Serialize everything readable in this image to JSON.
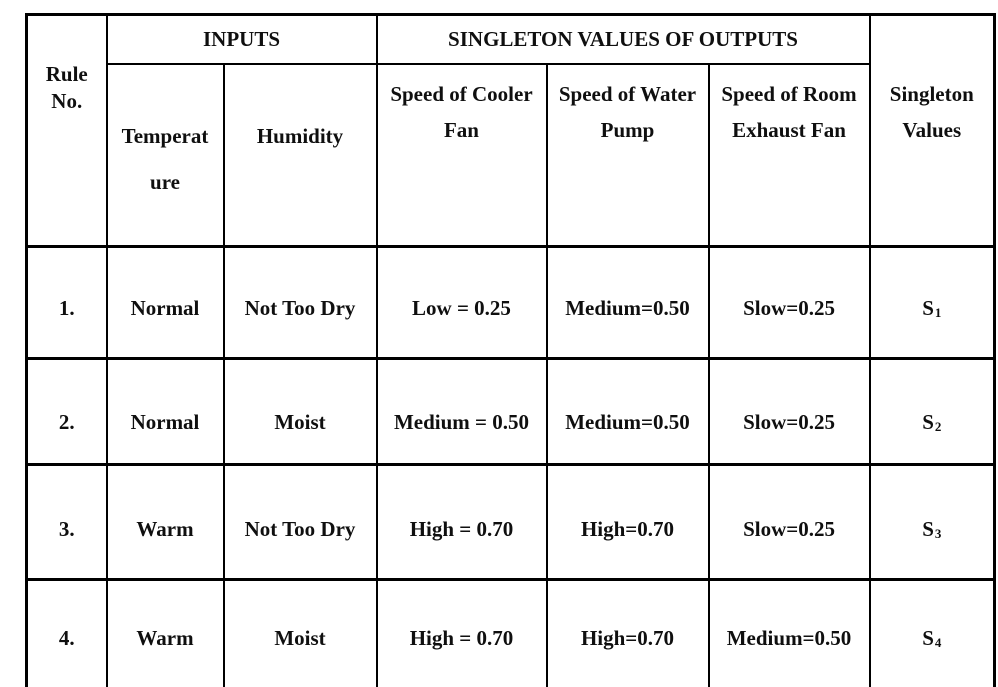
{
  "colors": {
    "background": "#ffffff",
    "border": "#000000",
    "text": "#0f0f0f"
  },
  "table": {
    "header": {
      "rule_no": "Rule No.",
      "inputs_group": "INPUTS",
      "outputs_group": "SINGLETON VALUES OF OUTPUTS",
      "singleton_values": "Singleton Values",
      "temperature": {
        "line1": "Temperat",
        "line2": "ure"
      },
      "humidity": "Humidity",
      "cooler_fan": "Speed of Cooler Fan",
      "water_pump": "Speed of Water Pump",
      "exhaust_fan": "Speed of Room Exhaust Fan"
    },
    "rows": [
      {
        "no": "1.",
        "temperature": "Normal",
        "humidity": "Not Too Dry",
        "cooler_fan": "Low = 0.25",
        "water_pump": "Medium=0.50",
        "exhaust_fan": "Slow=0.25",
        "singleton": {
          "base": "S",
          "sub": "1"
        }
      },
      {
        "no": "2.",
        "temperature": "Normal",
        "humidity": "Moist",
        "cooler_fan": "Medium = 0.50",
        "water_pump": "Medium=0.50",
        "exhaust_fan": "Slow=0.25",
        "singleton": {
          "base": "S",
          "sub": "2"
        }
      },
      {
        "no": "3.",
        "temperature": "Warm",
        "humidity": "Not Too Dry",
        "cooler_fan": "High = 0.70",
        "water_pump": "High=0.70",
        "exhaust_fan": "Slow=0.25",
        "singleton": {
          "base": "S",
          "sub": "3"
        }
      },
      {
        "no": "4.",
        "temperature": "Warm",
        "humidity": "Moist",
        "cooler_fan": "High = 0.70",
        "water_pump": "High=0.70",
        "exhaust_fan": "Medium=0.50",
        "singleton": {
          "base": "S",
          "sub": "4"
        }
      }
    ]
  }
}
